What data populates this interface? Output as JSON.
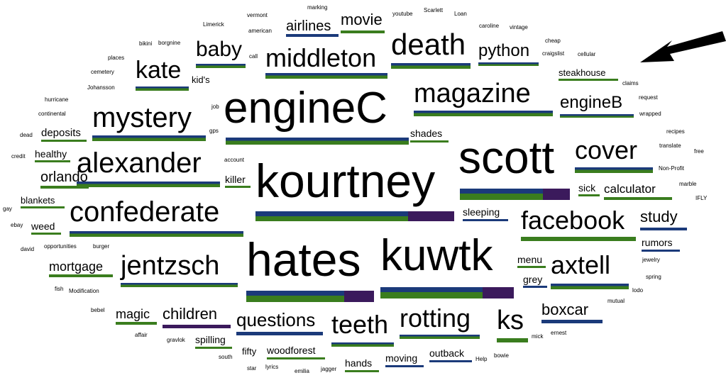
{
  "colors": {
    "text": "#000000",
    "bar_green": "#3a7d1e",
    "bar_blue": "#1b3a7a",
    "bar_purple": "#3b1a5c",
    "arrow": "#000000"
  },
  "words": [
    "engineC",
    "kourtney",
    "scott",
    "hates",
    "kuwtk",
    "confederate",
    "alexander",
    "mystery",
    "death",
    "magazine",
    "middleton",
    "jentzsch",
    "facebook",
    "cover",
    "axtell",
    "teeth",
    "rotting",
    "ks",
    "questions",
    "kate",
    "baby",
    "python",
    "boxcar",
    "children",
    "engineB",
    "orlando",
    "mortgage",
    "magic",
    "deposits",
    "movie",
    "airlines",
    "study",
    "calculator",
    "steakhouse",
    "healthy",
    "blankets",
    "weed",
    "rumors",
    "shades",
    "sleeping",
    "sick",
    "killer",
    "grey",
    "menu",
    "spilling",
    "outback",
    "moving",
    "hands",
    "woodforest",
    "fifty",
    "kid's",
    "vermont",
    "marking",
    "youtube",
    "Scarlett",
    "Loan",
    "american",
    "caroline",
    "vintage",
    "Limerick",
    "bikini",
    "borgnine",
    "places",
    "cemetery",
    "Johansson",
    "cheap",
    "craigslist",
    "cellular",
    "hurricane",
    "continental",
    "dead",
    "credit",
    "gay",
    "ebay",
    "david",
    "opportunities",
    "burger",
    "fish",
    "Modification",
    "bebel",
    "affair",
    "gravlok",
    "south",
    "star",
    "lyrics",
    "emilia",
    "jagger",
    "Help",
    "bowie",
    "mick",
    "ernest",
    "mutual",
    "lodo",
    "spring",
    "jewelry",
    "marble",
    "IFLY",
    "free",
    "translate",
    "recipes",
    "Non-Profit",
    "claims",
    "request",
    "wrapped",
    "account",
    "job",
    "gps",
    "call"
  ]
}
